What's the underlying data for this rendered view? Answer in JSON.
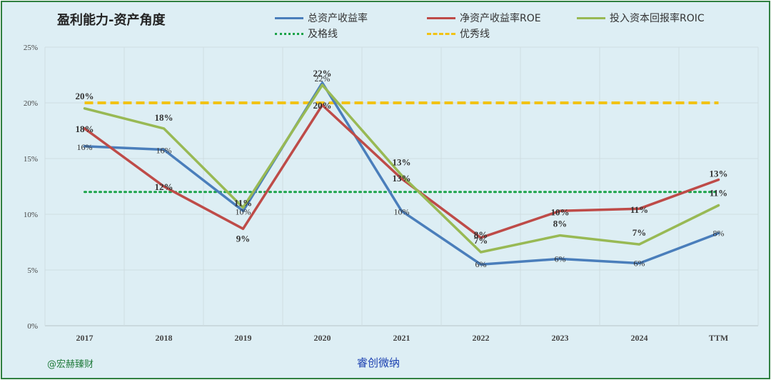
{
  "chart_data": {
    "type": "line",
    "title": "盈利能力-资产角度",
    "categories": [
      "2017",
      "2018",
      "2019",
      "2020",
      "2021",
      "2022",
      "2023",
      "2024",
      "TTM"
    ],
    "ylim": [
      0,
      25
    ],
    "yticks": [
      "0%",
      "5%",
      "10%",
      "15%",
      "20%",
      "25%"
    ],
    "grid": true,
    "legend_position": "top",
    "series": [
      {
        "name": "总资产收益率",
        "color": "#4a7ebb",
        "values": [
          16.1,
          15.8,
          10.3,
          21.8,
          10.3,
          5.5,
          6.0,
          5.6,
          8.3
        ],
        "labels": [
          "16%",
          "16%",
          "10%",
          "22%",
          "10%",
          "6%",
          "6%",
          "6%",
          "8%"
        ]
      },
      {
        "name": "净资产收益率ROE",
        "color": "#be4b48",
        "values": [
          17.7,
          12.5,
          8.7,
          19.8,
          13.2,
          7.9,
          10.3,
          10.5,
          13.1
        ],
        "labels": [
          "18%",
          "12%",
          "9%",
          "20%",
          "13%",
          "8%",
          "10%",
          "11%",
          "13%"
        ]
      },
      {
        "name": "投入资本回报率ROIC",
        "color": "#98b954",
        "values": [
          19.5,
          17.7,
          10.6,
          21.6,
          13.5,
          6.6,
          8.1,
          7.3,
          10.8
        ],
        "labels": [
          "20%",
          "18%",
          "11%",
          "22%",
          "13%",
          "7%",
          "8%",
          "7%",
          "11%"
        ]
      },
      {
        "name": "及格线",
        "color": "#19a348",
        "style": "dotted",
        "values": [
          12,
          12,
          12,
          12,
          12,
          12,
          12,
          12,
          12
        ]
      },
      {
        "name": "优秀线",
        "color": "#f2c314",
        "style": "dashed",
        "values": [
          20,
          20,
          20,
          20,
          20,
          20,
          20,
          20,
          20
        ]
      }
    ]
  },
  "footer": {
    "left_mark": "@宏赫臻财",
    "center_mark": "睿创微纳"
  }
}
